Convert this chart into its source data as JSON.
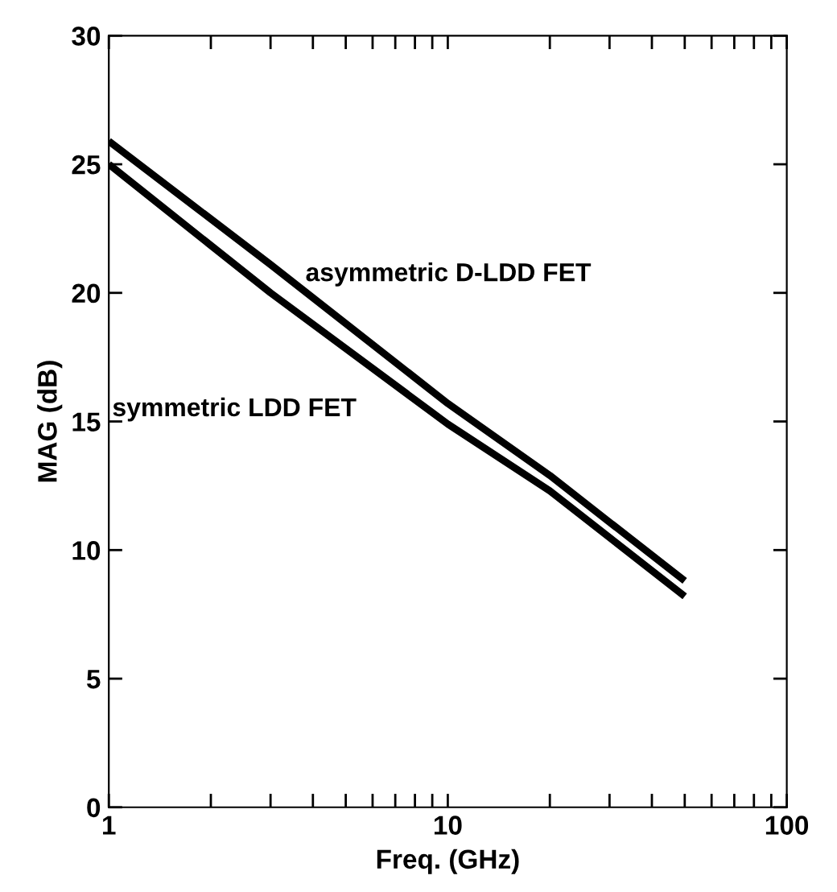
{
  "chart_data": {
    "type": "line",
    "xlabel": "Freq. (GHz)",
    "ylabel": "MAG (dB)",
    "log": "x",
    "xlim": [
      1,
      100
    ],
    "ylim": [
      0,
      30
    ],
    "xticks": [
      1,
      {
        "value": 2,
        "label": null
      },
      {
        "value": 3,
        "label": null
      },
      {
        "value": 4,
        "label": null
      },
      {
        "value": 5,
        "label": null
      },
      {
        "value": 6,
        "label": null
      },
      {
        "value": 7,
        "label": null
      },
      {
        "value": 8,
        "label": null
      },
      {
        "value": 9,
        "label": null
      },
      10,
      {
        "value": 20,
        "label": null
      },
      {
        "value": 30,
        "label": null
      },
      {
        "value": 40,
        "label": null
      },
      {
        "value": 50,
        "label": null
      },
      {
        "value": 60,
        "label": null
      },
      {
        "value": 70,
        "label": null
      },
      {
        "value": 80,
        "label": null
      },
      {
        "value": 90,
        "label": null
      },
      100
    ],
    "yticks": [
      0,
      5,
      10,
      15,
      20,
      25,
      30
    ],
    "grid": false,
    "legend": false,
    "marker": "none",
    "line_style": "solid",
    "series": [
      {
        "name": "asymmetric D-LDD FET",
        "color": "#000000",
        "x": [
          1,
          3,
          10,
          20,
          50
        ],
        "values": [
          25.9,
          21.1,
          15.7,
          12.9,
          8.8
        ]
      },
      {
        "name": "symmetric LDD FET",
        "color": "#000000",
        "x": [
          1,
          3,
          10,
          20,
          50
        ],
        "values": [
          25.0,
          20.0,
          14.9,
          12.3,
          8.2
        ]
      }
    ]
  }
}
